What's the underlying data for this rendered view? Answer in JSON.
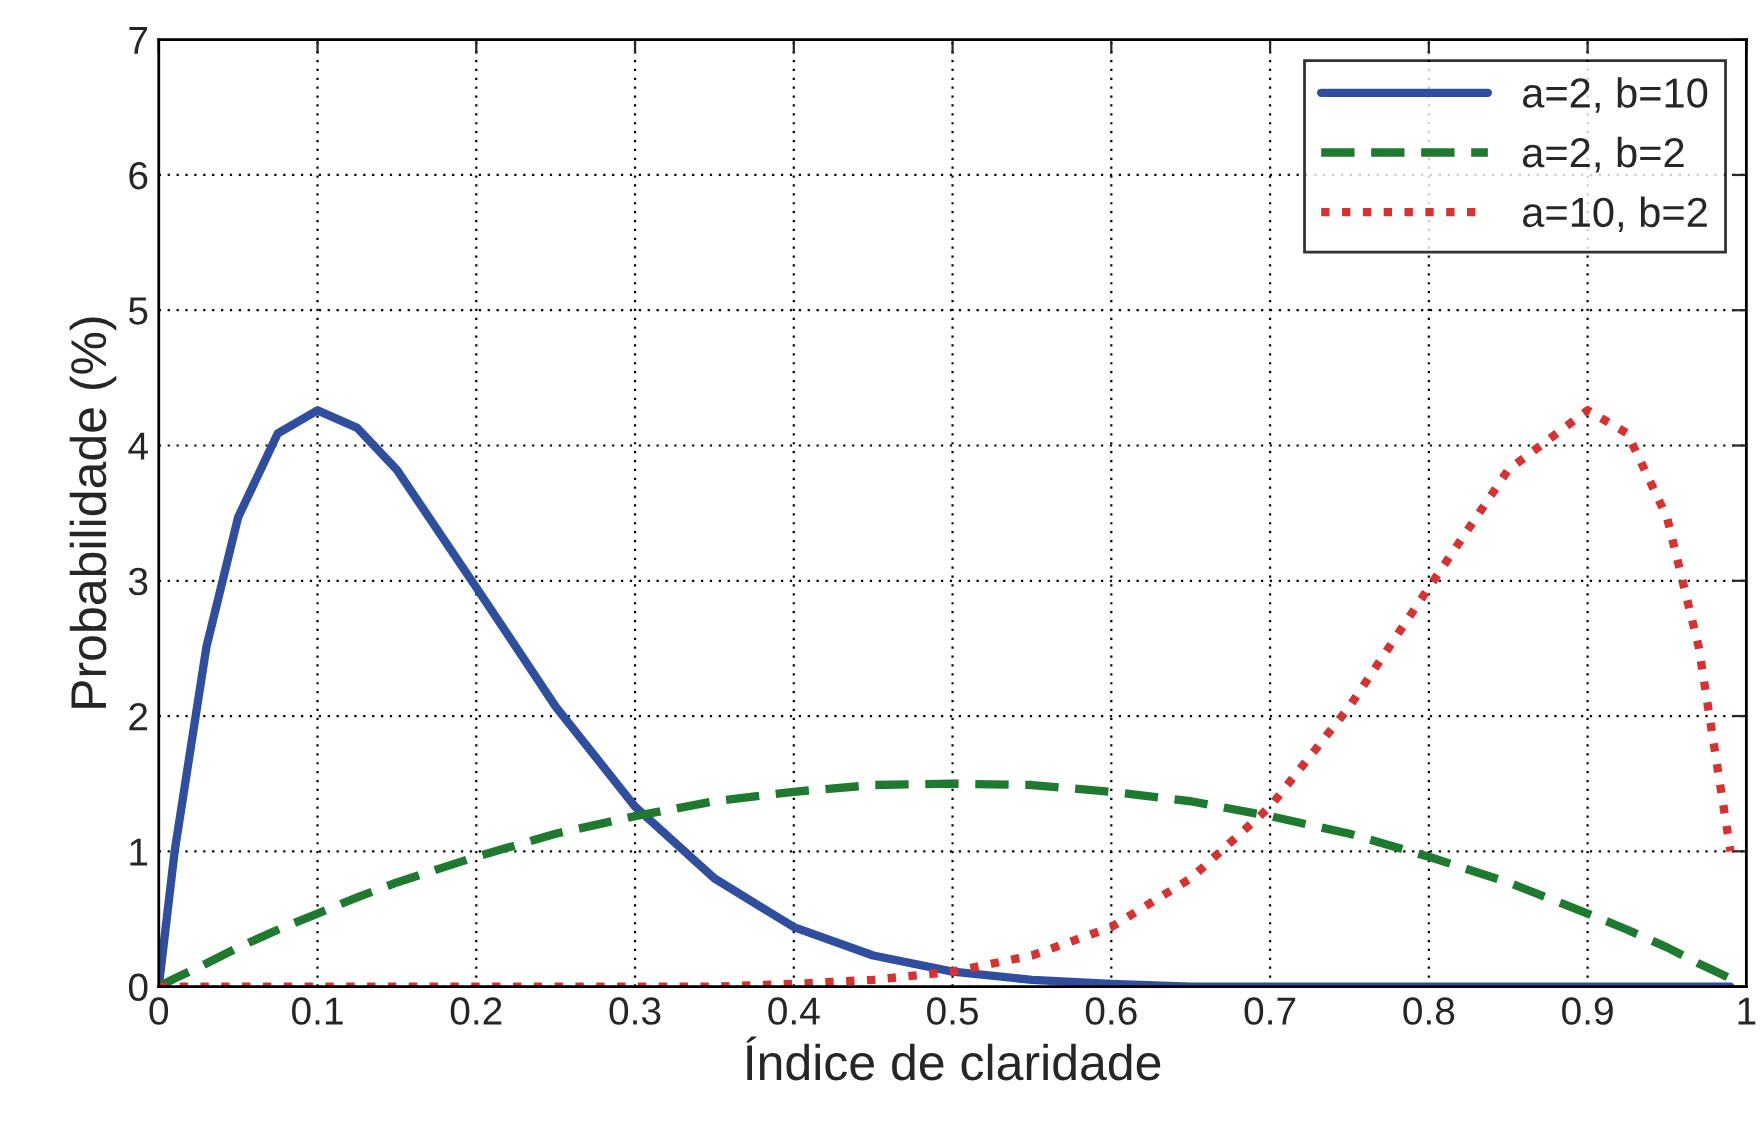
{
  "chart_data": {
    "type": "line",
    "xlabel": "Índice de claridade",
    "ylabel": "Probabilidade (%)",
    "x": [
      0,
      0.01,
      0.03,
      0.05,
      0.075,
      0.1,
      0.125,
      0.15,
      0.2,
      0.25,
      0.3,
      0.35,
      0.4,
      0.45,
      0.5,
      0.55,
      0.6,
      0.65,
      0.7,
      0.75,
      0.8,
      0.85,
      0.9,
      0.925,
      0.95,
      0.97,
      0.99
    ],
    "series": [
      {
        "name": "a=2, b=10",
        "color": "#2f4ea0",
        "line_style": "solid",
        "values": [
          0,
          1.0,
          2.51,
          3.47,
          4.09,
          4.26,
          4.13,
          3.82,
          2.95,
          2.07,
          1.33,
          0.8,
          0.44,
          0.23,
          0.11,
          0.05,
          0.02,
          0,
          0,
          0,
          0,
          0,
          0,
          0,
          0,
          0,
          0
        ]
      },
      {
        "name": "a=2, b=2",
        "color": "#1e7a2e",
        "line_style": "dashed",
        "values": [
          0,
          0.06,
          0.17,
          0.29,
          0.42,
          0.54,
          0.66,
          0.77,
          0.96,
          1.13,
          1.26,
          1.37,
          1.44,
          1.49,
          1.5,
          1.49,
          1.44,
          1.37,
          1.26,
          1.13,
          0.96,
          0.77,
          0.54,
          0.42,
          0.29,
          0.17,
          0.06
        ]
      },
      {
        "name": "a=10, b=2",
        "color": "#d93030",
        "line_style": "dotted",
        "values": [
          0,
          0,
          0,
          0,
          0,
          0,
          0,
          0,
          0,
          0,
          0,
          0,
          0.02,
          0.05,
          0.11,
          0.23,
          0.44,
          0.8,
          1.33,
          2.07,
          2.95,
          3.82,
          4.26,
          4.09,
          3.47,
          2.51,
          1.0
        ]
      }
    ],
    "xlim": [
      0,
      1
    ],
    "xticks": [
      0,
      0.1,
      0.2,
      0.3,
      0.4,
      0.5,
      0.6,
      0.7,
      0.8,
      0.9,
      1
    ],
    "ylim": [
      0,
      7
    ],
    "yticks": [
      0,
      1,
      2,
      3,
      4,
      5,
      6,
      7
    ],
    "grid": true,
    "legend": "top right",
    "marker": "none"
  }
}
